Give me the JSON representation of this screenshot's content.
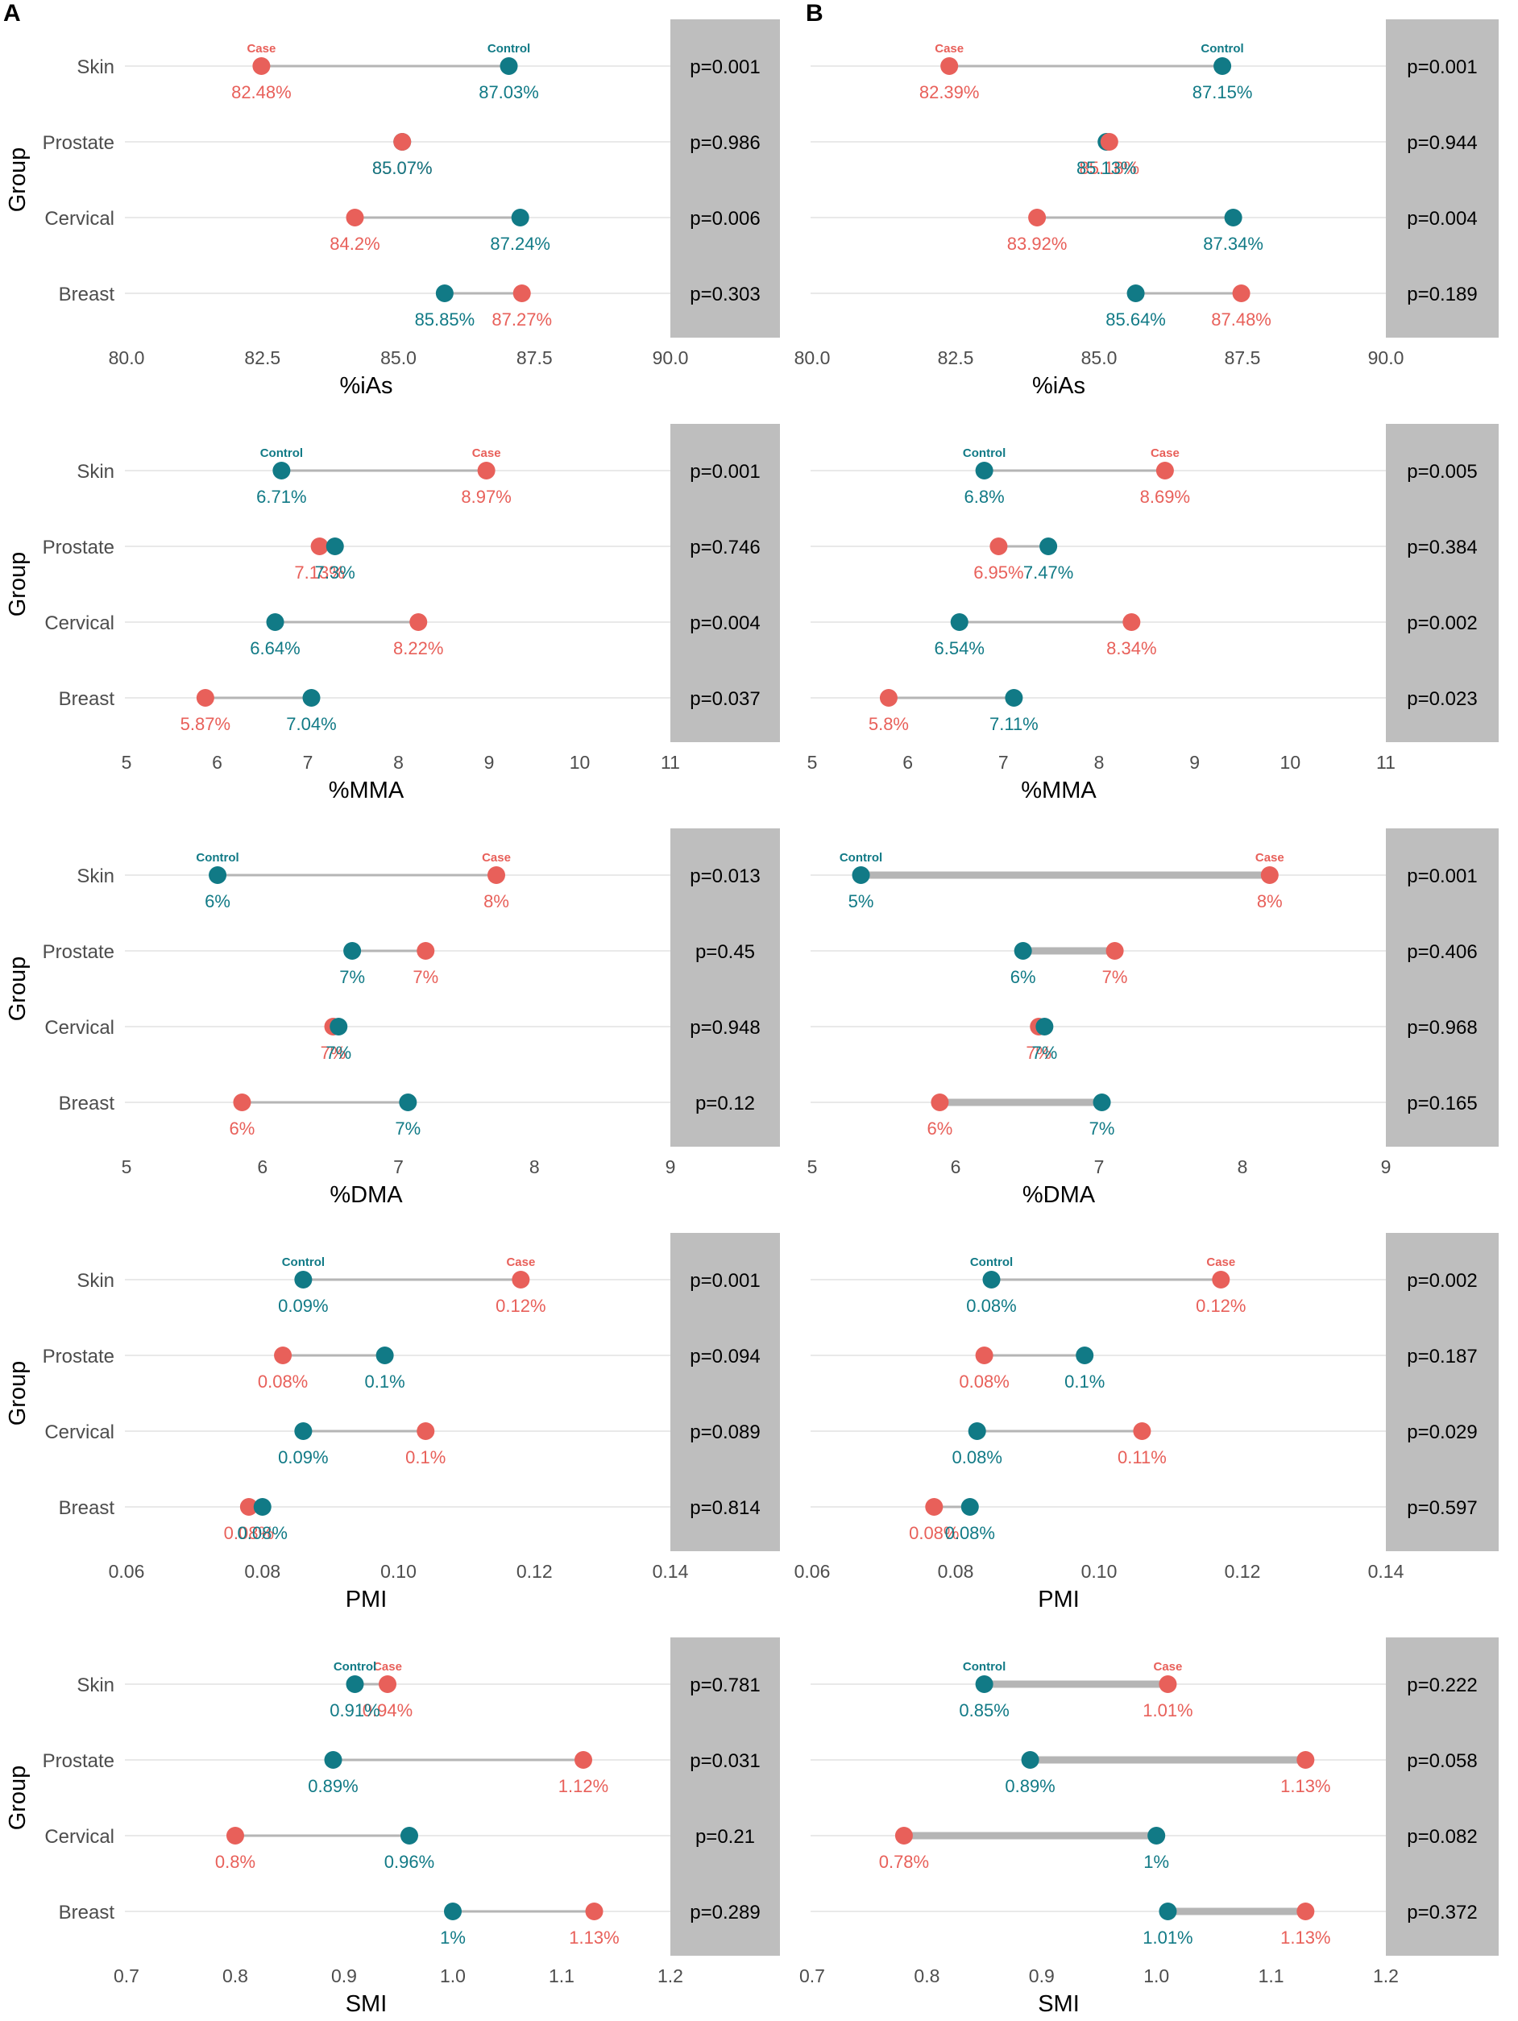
{
  "figure": {
    "panel_labels": [
      "A",
      "B"
    ],
    "y_axis_label": "Group",
    "series_names": {
      "case": "Case",
      "control": "Control"
    },
    "colors": {
      "case": "#E8605A",
      "control": "#117A86",
      "segment": "#B5B5B5",
      "pbox": "#BEBEBE",
      "grid": "#E2E2E2",
      "text": "#4D4D4D"
    }
  },
  "chart_data": [
    {
      "type": "dumbbell",
      "panel": "A",
      "xlabel": "%iAs",
      "ylabel": "Group",
      "xlim": [
        80,
        90
      ],
      "xticks": [
        "80.0",
        "82.5",
        "85.0",
        "87.5",
        "90.0"
      ],
      "xtick_values": [
        80,
        82.5,
        85,
        87.5,
        90
      ],
      "categories": [
        "Skin",
        "Prostate",
        "Cervical",
        "Breast"
      ],
      "series": [
        {
          "name": "Case",
          "values": [
            82.48,
            85.07,
            84.2,
            87.27
          ],
          "labels": [
            "82.48%",
            "85.07%",
            "84.2%",
            "87.27%"
          ]
        },
        {
          "name": "Control",
          "values": [
            87.03,
            85.07,
            87.24,
            85.85
          ],
          "labels": [
            "87.03%",
            "85.07%",
            "87.24%",
            "85.85%"
          ]
        }
      ],
      "p_values": [
        "p=0.001",
        "p=0.986",
        "p=0.006",
        "p=0.303"
      ]
    },
    {
      "type": "dumbbell",
      "panel": "B",
      "xlabel": "%iAs",
      "ylabel": "",
      "xlim": [
        80,
        90
      ],
      "xticks": [
        "80.0",
        "82.5",
        "85.0",
        "87.5",
        "90.0"
      ],
      "xtick_values": [
        80,
        82.5,
        85,
        87.5,
        90
      ],
      "categories": [
        "Skin",
        "Prostate",
        "Cervical",
        "Breast"
      ],
      "series": [
        {
          "name": "Case",
          "values": [
            82.39,
            85.18,
            83.92,
            87.48
          ],
          "labels": [
            "82.39%",
            "85.18%",
            "83.92%",
            "87.48%"
          ]
        },
        {
          "name": "Control",
          "values": [
            87.15,
            85.13,
            87.34,
            85.64
          ],
          "labels": [
            "87.15%",
            "85.13%",
            "87.34%",
            "85.64%"
          ]
        }
      ],
      "p_values": [
        "p=0.001",
        "p=0.944",
        "p=0.004",
        "p=0.189"
      ]
    },
    {
      "type": "dumbbell",
      "panel": "A",
      "xlabel": "%MMA",
      "ylabel": "Group",
      "xlim": [
        5,
        11
      ],
      "xticks": [
        "5",
        "6",
        "7",
        "8",
        "9",
        "10",
        "11"
      ],
      "xtick_values": [
        5,
        6,
        7,
        8,
        9,
        10,
        11
      ],
      "categories": [
        "Skin",
        "Prostate",
        "Cervical",
        "Breast"
      ],
      "series": [
        {
          "name": "Case",
          "values": [
            8.97,
            7.13,
            8.22,
            5.87
          ],
          "labels": [
            "8.97%",
            "7.13%",
            "8.22%",
            "5.87%"
          ]
        },
        {
          "name": "Control",
          "values": [
            6.71,
            7.3,
            6.64,
            7.04
          ],
          "labels": [
            "6.71%",
            "7.3%",
            "6.64%",
            "7.04%"
          ]
        }
      ],
      "p_values": [
        "p=0.001",
        "p=0.746",
        "p=0.004",
        "p=0.037"
      ]
    },
    {
      "type": "dumbbell",
      "panel": "B",
      "xlabel": "%MMA",
      "ylabel": "",
      "xlim": [
        5,
        11
      ],
      "xticks": [
        "5",
        "6",
        "7",
        "8",
        "9",
        "10",
        "11"
      ],
      "xtick_values": [
        5,
        6,
        7,
        8,
        9,
        10,
        11
      ],
      "categories": [
        "Skin",
        "Prostate",
        "Cervical",
        "Breast"
      ],
      "series": [
        {
          "name": "Case",
          "values": [
            8.69,
            6.95,
            8.34,
            5.8
          ],
          "labels": [
            "8.69%",
            "6.95%",
            "8.34%",
            "5.8%"
          ]
        },
        {
          "name": "Control",
          "values": [
            6.8,
            7.47,
            6.54,
            7.11
          ],
          "labels": [
            "6.8%",
            "7.47%",
            "6.54%",
            "7.11%"
          ]
        }
      ],
      "p_values": [
        "p=0.005",
        "p=0.384",
        "p=0.002",
        "p=0.023"
      ]
    },
    {
      "type": "dumbbell",
      "panel": "A",
      "xlabel": "%DMA",
      "ylabel": "Group",
      "xlim": [
        5,
        9
      ],
      "xticks": [
        "5",
        "6",
        "7",
        "8",
        "9"
      ],
      "xtick_values": [
        5,
        6,
        7,
        8,
        9
      ],
      "categories": [
        "Skin",
        "Prostate",
        "Cervical",
        "Breast"
      ],
      "series": [
        {
          "name": "Case",
          "values": [
            7.72,
            7.2,
            6.52,
            5.85
          ],
          "labels": [
            "8%",
            "7%",
            "7%",
            "6%"
          ]
        },
        {
          "name": "Control",
          "values": [
            5.67,
            6.66,
            6.56,
            7.07
          ],
          "labels": [
            "6%",
            "7%",
            "7%",
            "7%"
          ]
        }
      ],
      "p_values": [
        "p=0.013",
        "p=0.45",
        "p=0.948",
        "p=0.12"
      ]
    },
    {
      "type": "dumbbell",
      "panel": "B",
      "xlabel": "%DMA",
      "ylabel": "",
      "xlim": [
        5,
        9
      ],
      "xticks": [
        "5",
        "6",
        "7",
        "8",
        "9"
      ],
      "xtick_values": [
        5,
        6,
        7,
        8,
        9
      ],
      "categories": [
        "Skin",
        "Prostate",
        "Cervical",
        "Breast"
      ],
      "series": [
        {
          "name": "Case",
          "values": [
            8.19,
            7.11,
            6.58,
            5.89
          ],
          "labels": [
            "8%",
            "7%",
            "7%",
            "6%"
          ]
        },
        {
          "name": "Control",
          "values": [
            5.34,
            6.47,
            6.62,
            7.02
          ],
          "labels": [
            "5%",
            "6%",
            "7%",
            "7%"
          ]
        }
      ],
      "p_values": [
        "p=0.001",
        "p=0.406",
        "p=0.968",
        "p=0.165"
      ]
    },
    {
      "type": "dumbbell",
      "panel": "A",
      "xlabel": "PMI",
      "ylabel": "Group",
      "xlim": [
        0.06,
        0.14
      ],
      "xticks": [
        "0.06",
        "0.08",
        "0.10",
        "0.12",
        "0.14"
      ],
      "xtick_values": [
        0.06,
        0.08,
        0.1,
        0.12,
        0.14
      ],
      "categories": [
        "Skin",
        "Prostate",
        "Cervical",
        "Breast"
      ],
      "series": [
        {
          "name": "Case",
          "values": [
            0.118,
            0.083,
            0.104,
            0.078
          ],
          "labels": [
            "0.12%",
            "0.08%",
            "0.1%",
            "0.08%"
          ]
        },
        {
          "name": "Control",
          "values": [
            0.086,
            0.098,
            0.086,
            0.08
          ],
          "labels": [
            "0.09%",
            "0.1%",
            "0.09%",
            "0.08%"
          ]
        }
      ],
      "p_values": [
        "p=0.001",
        "p=0.094",
        "p=0.089",
        "p=0.814"
      ]
    },
    {
      "type": "dumbbell",
      "panel": "B",
      "xlabel": "PMI",
      "ylabel": "",
      "xlim": [
        0.06,
        0.14
      ],
      "xticks": [
        "0.06",
        "0.08",
        "0.10",
        "0.12",
        "0.14"
      ],
      "xtick_values": [
        0.06,
        0.08,
        0.1,
        0.12,
        0.14
      ],
      "categories": [
        "Skin",
        "Prostate",
        "Cervical",
        "Breast"
      ],
      "series": [
        {
          "name": "Case",
          "values": [
            0.117,
            0.084,
            0.106,
            0.077
          ],
          "labels": [
            "0.12%",
            "0.08%",
            "0.11%",
            "0.08%"
          ]
        },
        {
          "name": "Control",
          "values": [
            0.085,
            0.098,
            0.083,
            0.082
          ],
          "labels": [
            "0.08%",
            "0.1%",
            "0.08%",
            "0.08%"
          ]
        }
      ],
      "p_values": [
        "p=0.002",
        "p=0.187",
        "p=0.029",
        "p=0.597"
      ]
    },
    {
      "type": "dumbbell",
      "panel": "A",
      "xlabel": "SMI",
      "ylabel": "Group",
      "xlim": [
        0.7,
        1.2
      ],
      "xticks": [
        "0.7",
        "0.8",
        "0.9",
        "1.0",
        "1.1",
        "1.2"
      ],
      "xtick_values": [
        0.7,
        0.8,
        0.9,
        1.0,
        1.1,
        1.2
      ],
      "categories": [
        "Skin",
        "Prostate",
        "Cervical",
        "Breast"
      ],
      "series": [
        {
          "name": "Case",
          "values": [
            0.94,
            1.12,
            0.8,
            1.13
          ],
          "labels": [
            "0.94%",
            "1.12%",
            "0.8%",
            "1.13%"
          ]
        },
        {
          "name": "Control",
          "values": [
            0.91,
            0.89,
            0.96,
            1.0
          ],
          "labels": [
            "0.91%",
            "0.89%",
            "0.96%",
            "1%"
          ]
        }
      ],
      "p_values": [
        "p=0.781",
        "p=0.031",
        "p=0.21",
        "p=0.289"
      ]
    },
    {
      "type": "dumbbell",
      "panel": "B",
      "xlabel": "SMI",
      "ylabel": "",
      "xlim": [
        0.7,
        1.2
      ],
      "xticks": [
        "0.7",
        "0.8",
        "0.9",
        "1.0",
        "1.1",
        "1.2"
      ],
      "xtick_values": [
        0.7,
        0.8,
        0.9,
        1.0,
        1.1,
        1.2
      ],
      "categories": [
        "Skin",
        "Prostate",
        "Cervical",
        "Breast"
      ],
      "series": [
        {
          "name": "Case",
          "values": [
            1.01,
            1.13,
            0.78,
            1.13
          ],
          "labels": [
            "1.01%",
            "1.13%",
            "0.78%",
            "1.13%"
          ]
        },
        {
          "name": "Control",
          "values": [
            0.85,
            0.89,
            1.0,
            1.01
          ],
          "labels": [
            "0.85%",
            "0.89%",
            "1%",
            "1.01%"
          ]
        }
      ],
      "p_values": [
        "p=0.222",
        "p=0.058",
        "p=0.082",
        "p=0.372"
      ]
    }
  ]
}
